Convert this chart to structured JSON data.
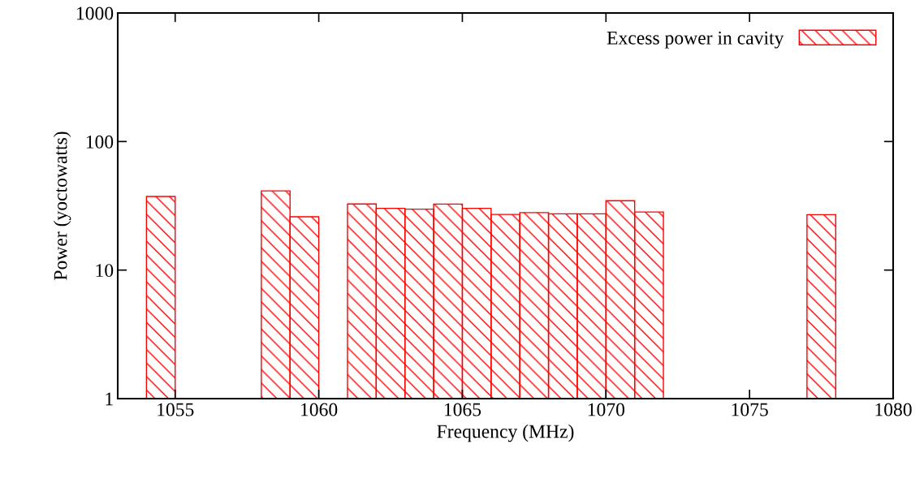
{
  "chart_data": {
    "type": "histogram",
    "xlabel": "Frequency (MHz)",
    "ylabel": "Power (yoctowatts)",
    "bins": [
      1054,
      1055,
      1056,
      1057,
      1058,
      1059,
      1060,
      1061,
      1062,
      1063,
      1064,
      1065,
      1066,
      1067,
      1068,
      1069,
      1070,
      1071,
      1072,
      1073,
      1074,
      1075,
      1076,
      1077,
      1078
    ],
    "series": [
      {
        "name": "Excess power in cavity",
        "color": "#ff0000",
        "values": [
          37.4,
          null,
          null,
          null,
          41.3,
          26,
          null,
          32.7,
          30.2,
          29.8,
          32.6,
          30.2,
          27.1,
          28,
          27.4,
          27.4,
          34.6,
          28.3,
          null,
          null,
          null,
          null,
          null,
          27
        ]
      }
    ],
    "xlim": [
      1053,
      1080
    ],
    "xticks": [
      1055,
      1060,
      1065,
      1070,
      1075,
      1080
    ],
    "ylim": [
      1,
      1000
    ],
    "yticks": [
      1,
      10,
      100,
      1000
    ],
    "log": "y",
    "grid": false,
    "legend": "top right"
  }
}
